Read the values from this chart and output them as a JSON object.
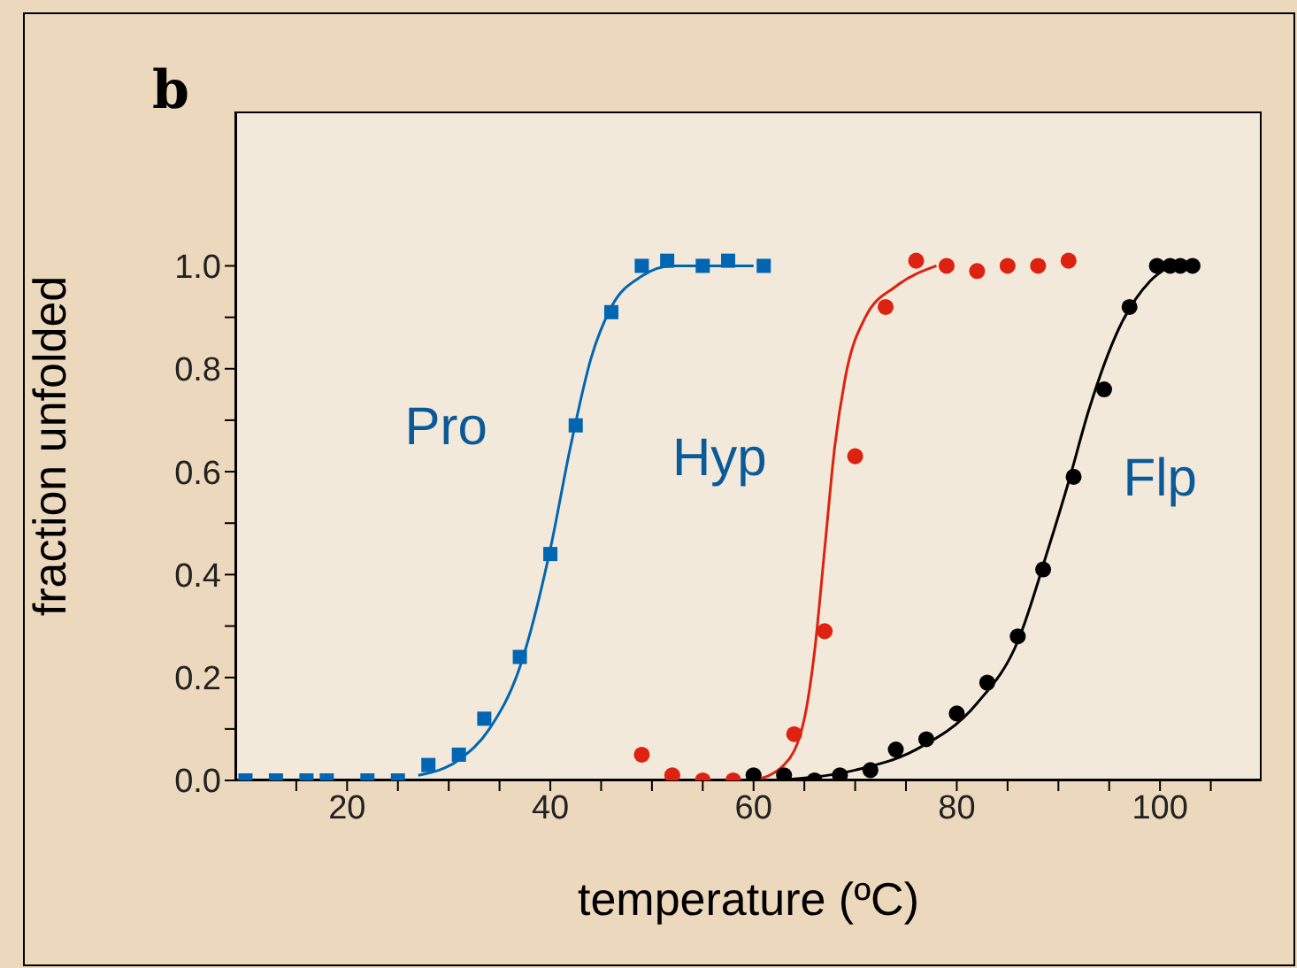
{
  "chart_data": {
    "type": "scatter",
    "title": "b",
    "xlabel": "temperature (ºC)",
    "ylabel": "fraction unfolded",
    "xlim": [
      9,
      110
    ],
    "xticks": [
      {
        "value": 15,
        "label": null
      },
      20,
      {
        "value": 25,
        "label": null
      },
      {
        "value": 30,
        "label": null
      },
      {
        "value": 35,
        "label": null
      },
      40,
      {
        "value": 45,
        "label": null
      },
      {
        "value": 50,
        "label": null
      },
      {
        "value": 55,
        "label": null
      },
      60,
      {
        "value": 65,
        "label": null
      },
      {
        "value": 70,
        "label": null
      },
      {
        "value": 75,
        "label": null
      },
      80,
      {
        "value": 85,
        "label": null
      },
      {
        "value": 90,
        "label": null
      },
      {
        "value": 95,
        "label": null
      },
      100,
      {
        "value": 105,
        "label": null
      }
    ],
    "ylim": [
      0,
      1.3
    ],
    "yticks": [
      {
        "value": 0,
        "label": "0.0"
      },
      {
        "value": 0.1,
        "label": null
      },
      0.2,
      {
        "value": 0.3,
        "label": null
      },
      0.4,
      {
        "value": 0.5,
        "label": null
      },
      0.6,
      {
        "value": 0.7,
        "label": null
      },
      0.8,
      {
        "value": 0.9,
        "label": null
      },
      {
        "value": 1,
        "label": "1.0"
      }
    ],
    "series": [
      {
        "name": "Pro",
        "marker": "square",
        "color": "#0066b3",
        "x": [
          10,
          13,
          16,
          18,
          22,
          25,
          28,
          31,
          33.5,
          37,
          40,
          42.5,
          46,
          49,
          51.5,
          55,
          57.5,
          61
        ],
        "values": [
          0,
          0,
          0,
          0,
          0,
          0,
          0.03,
          0.05,
          0.12,
          0.24,
          0.44,
          0.69,
          0.91,
          1.0,
          1.01,
          1.0,
          1.01,
          1.0
        ]
      },
      {
        "name": "Hyp",
        "marker": "circle",
        "color": "#dd2211",
        "x": [
          49,
          52,
          55,
          58,
          64,
          67,
          70,
          73,
          76,
          79,
          82,
          85,
          88,
          91
        ],
        "values": [
          0.05,
          0.01,
          0,
          0,
          0.09,
          0.29,
          0.63,
          0.92,
          1.01,
          1.0,
          0.99,
          1.0,
          1.0,
          1.01
        ]
      },
      {
        "name": "Flp",
        "marker": "circle",
        "color": "#000000",
        "x": [
          60,
          63,
          66,
          68.5,
          71.5,
          74,
          77,
          80,
          83,
          86,
          88.5,
          91.5,
          94.5,
          97,
          99.7,
          101,
          102,
          103.2
        ],
        "values": [
          0.01,
          0.01,
          0,
          0.01,
          0.02,
          0.06,
          0.08,
          0.13,
          0.19,
          0.28,
          0.41,
          0.59,
          0.76,
          0.92,
          1.0,
          1.0,
          1.0,
          1.0
        ]
      },
      {
        "type": "line",
        "marker": "none",
        "color": "#0066b3",
        "x": [
          27,
          31,
          34,
          37,
          40,
          42,
          44,
          46,
          49,
          52,
          60
        ],
        "values": [
          0.01,
          0.04,
          0.1,
          0.22,
          0.45,
          0.65,
          0.82,
          0.92,
          0.98,
          1.0,
          1.0
        ]
      },
      {
        "type": "line",
        "marker": "none",
        "color": "#dd2211",
        "x": [
          60,
          63,
          65,
          66,
          67,
          68,
          69,
          71,
          74,
          78
        ],
        "values": [
          0,
          0.03,
          0.12,
          0.25,
          0.45,
          0.65,
          0.78,
          0.9,
          0.96,
          1.0
        ]
      },
      {
        "type": "line",
        "marker": "none",
        "color": "#000000",
        "x": [
          62,
          70,
          76,
          82,
          86,
          89,
          91,
          93,
          96,
          99,
          101
        ],
        "values": [
          0,
          0.02,
          0.06,
          0.15,
          0.27,
          0.45,
          0.58,
          0.72,
          0.88,
          0.97,
          1.0
        ]
      }
    ]
  }
}
